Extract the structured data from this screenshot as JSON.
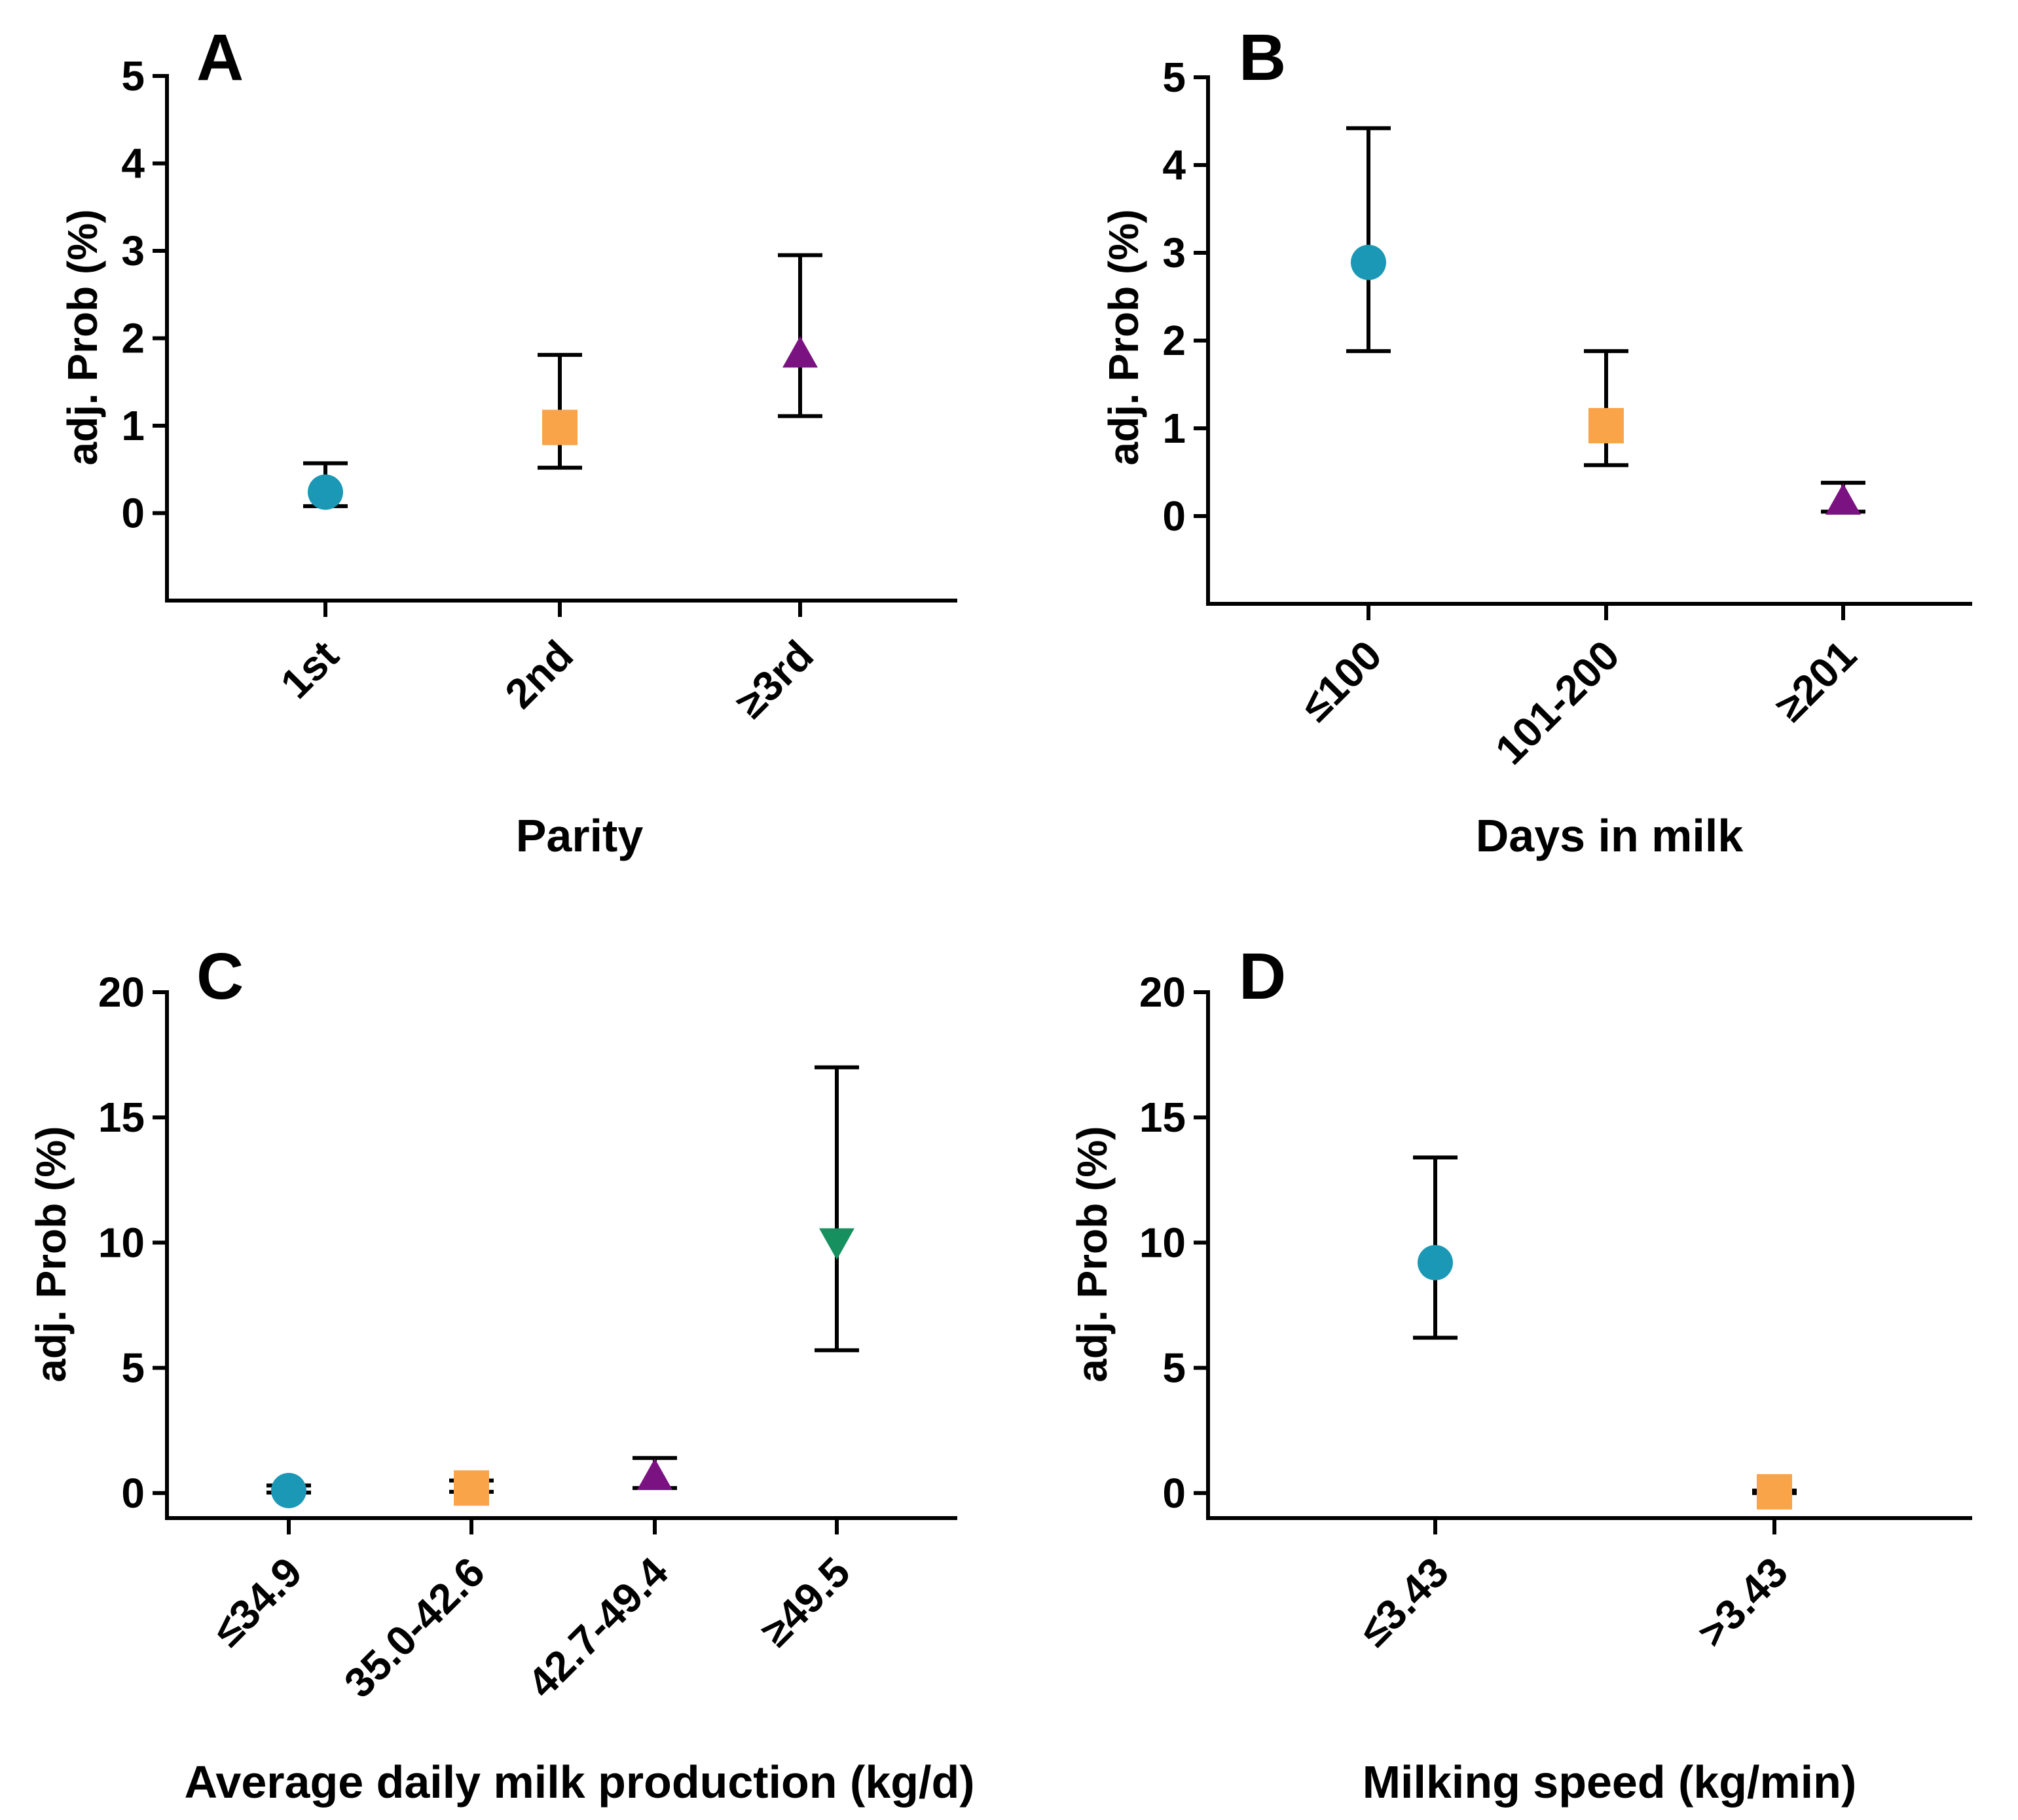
{
  "colors": {
    "circle": "#1B98B5",
    "square": "#F9A449",
    "triangle_up": "#7B1281",
    "triangle_down": "#17905F"
  },
  "chart_data": [
    {
      "type": "scatter",
      "panel": "A",
      "title": "",
      "xlabel": "Parity",
      "ylabel": "adj. Prob  (%)",
      "ylim": [
        -1,
        5
      ],
      "yticks": [
        "0",
        "1",
        "2",
        "3",
        "4",
        "5"
      ],
      "categories": [
        "1st",
        "2nd",
        "≥3rd"
      ],
      "points": [
        {
          "category": "1st",
          "value": 0.24,
          "lower": 0.08,
          "upper": 0.57,
          "marker": "circle"
        },
        {
          "category": "2nd",
          "value": 0.98,
          "lower": 0.52,
          "upper": 1.81,
          "marker": "square"
        },
        {
          "category": "≥3rd",
          "value": 1.8,
          "lower": 1.11,
          "upper": 2.95,
          "marker": "triangle_up"
        }
      ]
    },
    {
      "type": "scatter",
      "panel": "B",
      "title": "",
      "xlabel": "Days in milk",
      "ylabel": "adj. Prob  (%)",
      "ylim": [
        -1,
        5
      ],
      "yticks": [
        "0",
        "1",
        "2",
        "3",
        "4",
        "5"
      ],
      "categories": [
        "≤100",
        "101-200",
        "≥201"
      ],
      "points": [
        {
          "category": "≤100",
          "value": 2.89,
          "lower": 1.88,
          "upper": 4.42,
          "marker": "circle"
        },
        {
          "category": "101-200",
          "value": 1.03,
          "lower": 0.58,
          "upper": 1.88,
          "marker": "square"
        },
        {
          "category": "≥201",
          "value": 0.15,
          "lower": 0.05,
          "upper": 0.38,
          "marker": "triangle_up"
        }
      ]
    },
    {
      "type": "scatter",
      "panel": "C",
      "title": "",
      "xlabel": "Average daily milk production (kg/d)",
      "ylabel": "adj. Prob  (%)",
      "ylim": [
        -1,
        20
      ],
      "yticks": [
        "0",
        "5",
        "10",
        "15",
        "20"
      ],
      "categories": [
        "≤34.9",
        "35.0-42.6",
        "42.7-49.4",
        "≥49.5"
      ],
      "points": [
        {
          "category": "≤34.9",
          "value": 0.1,
          "lower": 0.02,
          "upper": 0.3,
          "marker": "circle"
        },
        {
          "category": "35.0-42.6",
          "value": 0.2,
          "lower": 0.05,
          "upper": 0.5,
          "marker": "square"
        },
        {
          "category": "42.7-49.4",
          "value": 0.6,
          "lower": 0.2,
          "upper": 1.4,
          "marker": "triangle_up"
        },
        {
          "category": "≥49.5",
          "value": 10.1,
          "lower": 5.7,
          "upper": 17.0,
          "marker": "triangle_down"
        }
      ]
    },
    {
      "type": "scatter",
      "panel": "D",
      "title": "",
      "xlabel": "Milking speed (kg/min)",
      "ylabel": "adj. Prob  (%)",
      "ylim": [
        -1,
        20
      ],
      "yticks": [
        "0",
        "5",
        "10",
        "15",
        "20"
      ],
      "categories": [
        "≤3.43",
        ">3.43"
      ],
      "points": [
        {
          "category": "≤3.43",
          "value": 9.2,
          "lower": 6.2,
          "upper": 13.4,
          "marker": "circle"
        },
        {
          "category": ">3.43",
          "value": 0.05,
          "lower": 0.0,
          "upper": 0.1,
          "marker": "square"
        }
      ]
    }
  ]
}
